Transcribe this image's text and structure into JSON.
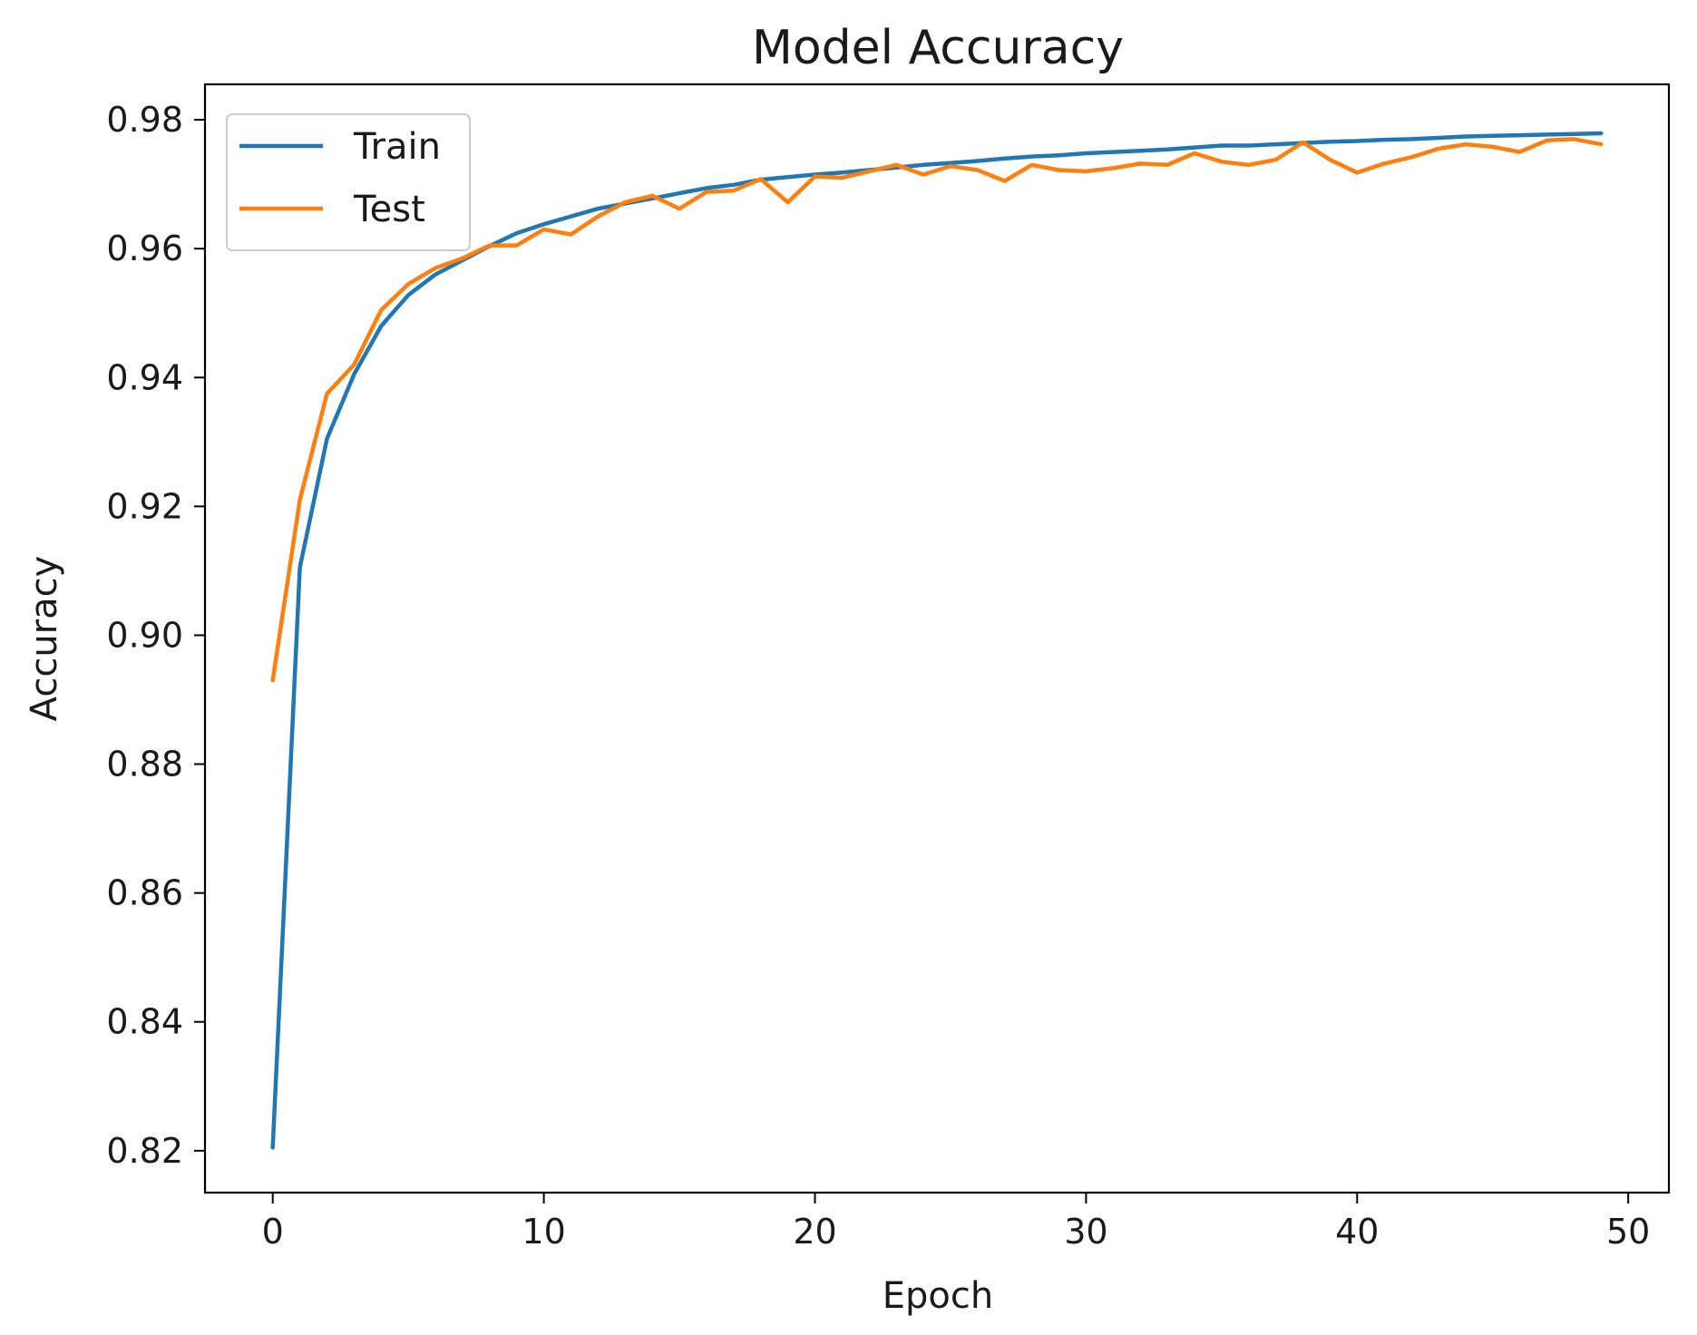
{
  "chart_data": {
    "type": "line",
    "title": "Model Accuracy",
    "xlabel": "Epoch",
    "ylabel": "Accuracy",
    "xlim": [
      -2.5,
      51.5
    ],
    "ylim": [
      0.8135,
      0.9855
    ],
    "x_ticks": [
      0,
      10,
      20,
      30,
      40,
      50
    ],
    "y_ticks": [
      0.82,
      0.84,
      0.86,
      0.88,
      0.9,
      0.92,
      0.94,
      0.96,
      0.98
    ],
    "x_tick_labels": [
      "0",
      "10",
      "20",
      "30",
      "40",
      "50"
    ],
    "y_tick_labels": [
      "0.82",
      "0.84",
      "0.86",
      "0.88",
      "0.90",
      "0.92",
      "0.94",
      "0.96",
      "0.98"
    ],
    "grid": false,
    "legend_position": "top-left",
    "x": [
      0,
      1,
      2,
      3,
      4,
      5,
      6,
      7,
      8,
      9,
      10,
      11,
      12,
      13,
      14,
      15,
      16,
      17,
      18,
      19,
      20,
      21,
      22,
      23,
      24,
      25,
      26,
      27,
      28,
      29,
      30,
      31,
      32,
      33,
      34,
      35,
      36,
      37,
      38,
      39,
      40,
      41,
      42,
      43,
      44,
      45,
      46,
      47,
      48,
      49
    ],
    "series": [
      {
        "name": "Train",
        "color": "#1f77b4",
        "values": [
          0.8205,
          0.9105,
          0.9305,
          0.9405,
          0.948,
          0.9528,
          0.956,
          0.9582,
          0.9604,
          0.9624,
          0.9638,
          0.965,
          0.9662,
          0.967,
          0.9678,
          0.9686,
          0.9694,
          0.9699,
          0.9707,
          0.9711,
          0.9715,
          0.9718,
          0.9722,
          0.9726,
          0.973,
          0.9733,
          0.9736,
          0.974,
          0.9743,
          0.9745,
          0.9748,
          0.975,
          0.9752,
          0.9754,
          0.9757,
          0.976,
          0.976,
          0.9762,
          0.9764,
          0.9766,
          0.9767,
          0.9769,
          0.977,
          0.9772,
          0.9774,
          0.9775,
          0.9776,
          0.9777,
          0.9778,
          0.9779
        ]
      },
      {
        "name": "Test",
        "color": "#ff7f0e",
        "values": [
          0.893,
          0.921,
          0.9375,
          0.942,
          0.9505,
          0.9545,
          0.957,
          0.9585,
          0.9605,
          0.9605,
          0.963,
          0.9622,
          0.965,
          0.9672,
          0.9682,
          0.9662,
          0.9688,
          0.969,
          0.9708,
          0.9672,
          0.9712,
          0.971,
          0.972,
          0.973,
          0.9715,
          0.9728,
          0.9722,
          0.9705,
          0.973,
          0.9722,
          0.972,
          0.9725,
          0.9732,
          0.973,
          0.9748,
          0.9735,
          0.973,
          0.9738,
          0.9765,
          0.9738,
          0.9718,
          0.9732,
          0.9742,
          0.9755,
          0.9762,
          0.9758,
          0.975,
          0.9768,
          0.977,
          0.9762
        ]
      }
    ]
  }
}
